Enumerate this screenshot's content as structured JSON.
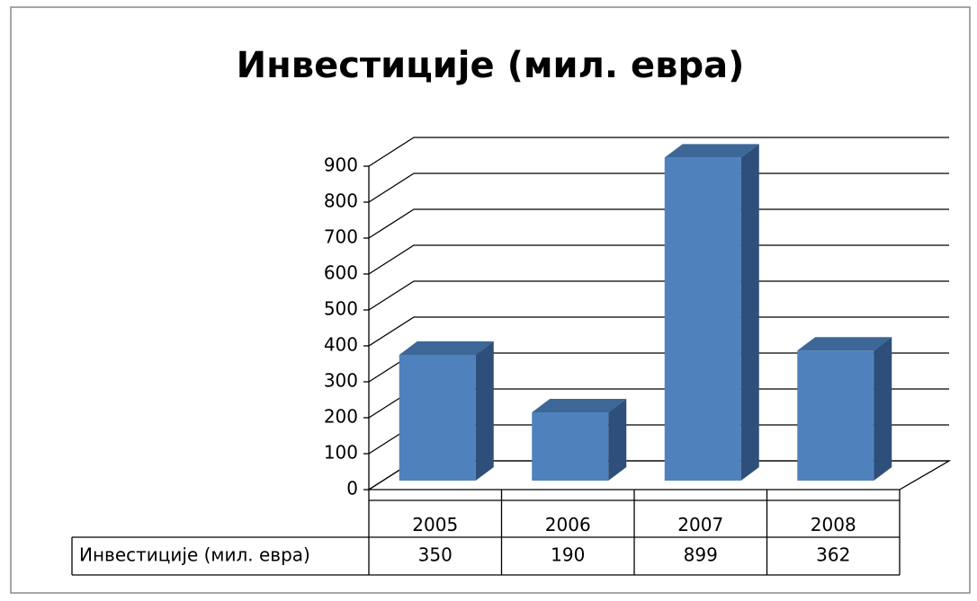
{
  "chart_data": {
    "type": "bar3d",
    "title": "Инвестиције (мил. евра)",
    "categories": [
      "2005",
      "2006",
      "2007",
      "2008"
    ],
    "series": [
      {
        "name": "Инвестиције (мил. евра)",
        "color": "#4f81bd",
        "values": [
          350,
          190,
          899,
          362
        ]
      }
    ],
    "ylim": [
      0,
      900
    ],
    "yticks": [
      0,
      100,
      200,
      300,
      400,
      500,
      600,
      700,
      800,
      900
    ],
    "grid": true,
    "data_table": true
  }
}
